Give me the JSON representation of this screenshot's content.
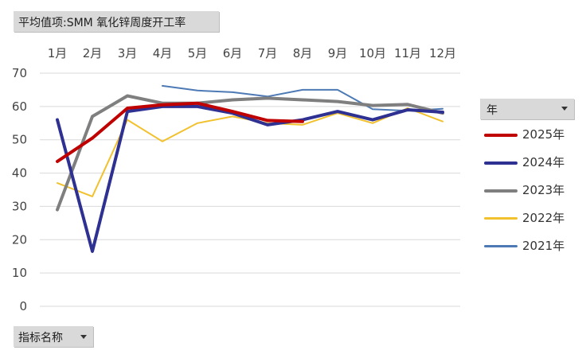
{
  "filter_title": "平均值项:SMM 氧化锌周度开工率",
  "field_button": "指标名称",
  "legend_header": "年",
  "chart_data": {
    "type": "line",
    "categories": [
      "1月",
      "2月",
      "3月",
      "4月",
      "5月",
      "6月",
      "7月",
      "8月",
      "9月",
      "10月",
      "11月",
      "12月"
    ],
    "ylim": [
      0,
      70
    ],
    "yticks": [
      0,
      10,
      20,
      30,
      40,
      50,
      60,
      70
    ],
    "grid": true,
    "legend": "right",
    "series": [
      {
        "name": "2025年",
        "color": "#c00000",
        "width": 4,
        "values": [
          43.5,
          50.5,
          59.5,
          60.5,
          61,
          58.5,
          55.8,
          55.5,
          null,
          null,
          null,
          null
        ]
      },
      {
        "name": "2024年",
        "color": "#2e3092",
        "width": 4,
        "values": [
          56,
          16.5,
          58.5,
          60,
          60,
          58,
          54.5,
          56,
          58.5,
          56,
          59,
          58.3
        ]
      },
      {
        "name": "2023年",
        "color": "#7f7f7f",
        "width": 4,
        "values": [
          29,
          57,
          63.2,
          61,
          61,
          62,
          62.5,
          62,
          61.5,
          60.3,
          60.6,
          58
        ]
      },
      {
        "name": "2022年",
        "color": "#f2c12e",
        "width": 2,
        "values": [
          37,
          33,
          56,
          49.5,
          55,
          57,
          55,
          54.5,
          58,
          55,
          59.5,
          55.5
        ]
      },
      {
        "name": "2021年",
        "color": "#4d7ab5",
        "width": 2,
        "values": [
          null,
          null,
          null,
          66.2,
          64.8,
          64.3,
          63,
          65,
          65,
          59.2,
          58.7,
          59.3
        ]
      }
    ]
  }
}
